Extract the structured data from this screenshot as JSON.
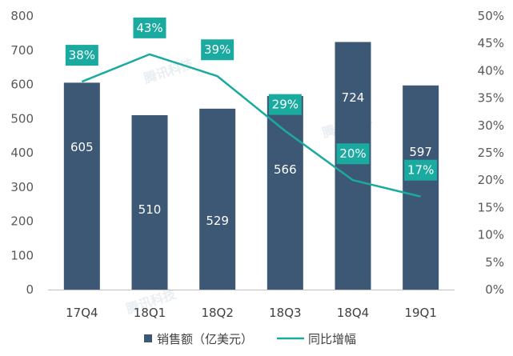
{
  "chart_data": {
    "type": "bar",
    "categories": [
      "17Q4",
      "18Q1",
      "18Q2",
      "18Q3",
      "18Q4",
      "19Q1"
    ],
    "series": [
      {
        "name": "销售额（亿美元）",
        "type": "bar",
        "axis": "left",
        "values": [
          605,
          510,
          529,
          566,
          724,
          597
        ],
        "labels": [
          "605",
          "510",
          "529",
          "566",
          "724",
          "597"
        ],
        "color": "#3d5875"
      },
      {
        "name": "同比增幅",
        "type": "line",
        "axis": "right",
        "values": [
          38,
          43,
          39,
          29,
          20,
          17
        ],
        "labels": [
          "38%",
          "43%",
          "39%",
          "29%",
          "20%",
          "17%"
        ],
        "color": "#1aaaa0"
      }
    ],
    "y_left": {
      "min": 0,
      "max": 800,
      "ticks": [
        0,
        100,
        200,
        300,
        400,
        500,
        600,
        700,
        800
      ],
      "tick_labels": [
        "0",
        "100",
        "200",
        "300",
        "400",
        "500",
        "600",
        "700",
        "800"
      ]
    },
    "y_right": {
      "min": 0,
      "max": 50,
      "ticks": [
        0,
        5,
        10,
        15,
        20,
        25,
        30,
        35,
        40,
        45,
        50
      ],
      "tick_labels": [
        "0%",
        "5%",
        "10%",
        "15%",
        "20%",
        "25%",
        "30%",
        "35%",
        "40%",
        "45%",
        "50%"
      ]
    },
    "title": "",
    "xlabel": "",
    "ylabel": "",
    "grid": false,
    "legend": "bottom",
    "watermark": "腾讯科技"
  }
}
